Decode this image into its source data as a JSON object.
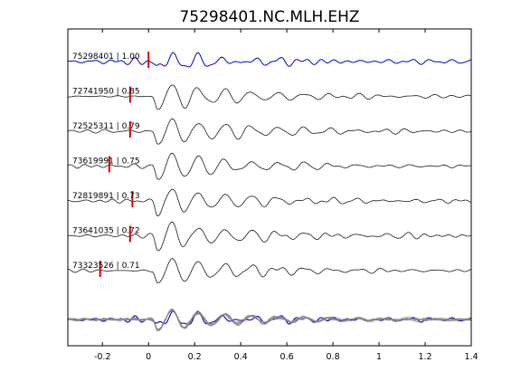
{
  "chart_data": {
    "type": "line",
    "title": "75298401.NC.MLH.EHZ",
    "xlabel": "",
    "ylabel": "",
    "xlim": [
      -0.35,
      1.4
    ],
    "x_ticks": [
      "-0.2",
      "0",
      "0.2",
      "0.4",
      "0.6",
      "0.8",
      "1",
      "1.2",
      "1.4"
    ],
    "x_tick_values": [
      -0.2,
      0,
      0.2,
      0.4,
      0.6,
      0.8,
      1.0,
      1.2,
      1.4
    ],
    "grid": false,
    "colors": {
      "master": "#0000cc",
      "trace": "#1a1a1a",
      "pick": "#dd0000",
      "overlay": "#888888"
    },
    "traces": [
      {
        "label": "75298401 | 1.00",
        "event_id": "75298401",
        "correlation": 1.0,
        "pick_time": 0.0,
        "color": "#0000cc"
      },
      {
        "label": "72741950 | 0.85",
        "event_id": "72741950",
        "correlation": 0.85,
        "pick_time": -0.08,
        "color": "#1a1a1a"
      },
      {
        "label": "72525311 | 0.79",
        "event_id": "72525311",
        "correlation": 0.79,
        "pick_time": -0.08,
        "color": "#1a1a1a"
      },
      {
        "label": "73619991 | 0.75",
        "event_id": "73619991",
        "correlation": 0.75,
        "pick_time": -0.17,
        "color": "#1a1a1a"
      },
      {
        "label": "72819891 | 0.73",
        "event_id": "72819891",
        "correlation": 0.73,
        "pick_time": -0.07,
        "color": "#1a1a1a"
      },
      {
        "label": "73641035 | 0.72",
        "event_id": "73641035",
        "correlation": 0.72,
        "pick_time": -0.08,
        "color": "#1a1a1a"
      },
      {
        "label": "73323526 | 0.71",
        "event_id": "73323526",
        "correlation": 0.71,
        "pick_time": -0.21,
        "color": "#1a1a1a"
      }
    ],
    "stack": {
      "description_visible": false,
      "overlay_count": 7
    }
  }
}
